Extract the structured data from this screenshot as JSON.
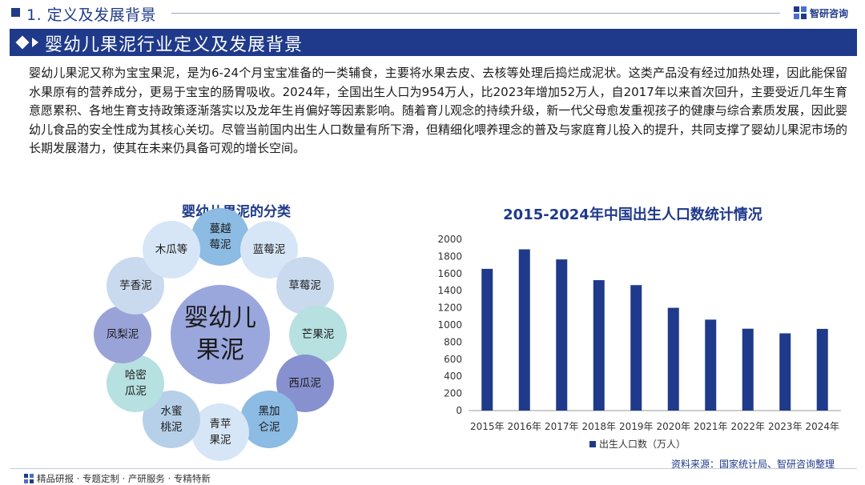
{
  "header": {
    "section": "1. 定义及发展背景",
    "logo_text": "智研咨询"
  },
  "banner": {
    "title": "婴幼儿果泥行业定义及发展背景"
  },
  "paragraph": "婴幼儿果泥又称为宝宝果泥，是为6-24个月宝宝准备的一类辅食，主要将水果去皮、去核等处理后捣烂成泥状。这类产品没有经过加热处理，因此能保留水果原有的营养成分，更易于宝宝的肠胃吸收。2024年，全国出生人口为954万人，比2023年增加52万人，自2017年以来首次回升，主要受近几年生育意愿累积、各地生育支持政策逐渐落实以及龙年生肖偏好等因素影响。随着育儿观念的持续升级，新一代父母愈发重视孩子的健康与综合素质发展，因此婴幼儿食品的安全性成为其核心关切。尽管当前国内出生人口数量有所下滑，但精细化喂养理念的普及与家庭育儿投入的提升，共同支撑了婴幼儿果泥市场的长期发展潜力，使其在未来仍具备可观的增长空间。",
  "classification": {
    "title": "婴幼儿果泥的分类",
    "center": "婴幼儿果泥",
    "items": [
      {
        "label": "蔓越莓泥",
        "color": "#8cbbe3"
      },
      {
        "label": "蓝莓泥",
        "color": "#d7e6f6"
      },
      {
        "label": "草莓泥",
        "color": "#c9d9ee"
      },
      {
        "label": "芒果泥",
        "color": "#b7e0e0"
      },
      {
        "label": "西瓜泥",
        "color": "#8791cf"
      },
      {
        "label": "黑加仑泥",
        "color": "#8cbbe3"
      },
      {
        "label": "青苹果泥",
        "color": "#d7e6f6"
      },
      {
        "label": "水蜜桃泥",
        "color": "#b7d0ea"
      },
      {
        "label": "哈密瓜泥",
        "color": "#b7e0e0"
      },
      {
        "label": "凤梨泥",
        "color": "#9aa3d8"
      },
      {
        "label": "芋香泥",
        "color": "#c9d9ee"
      },
      {
        "label": "木瓜等",
        "color": "#d7e6f6"
      }
    ]
  },
  "chart_data": {
    "type": "bar",
    "title": "2015-2024年中国出生人口数统计情况",
    "categories": [
      "2015年",
      "2016年",
      "2017年",
      "2018年",
      "2019年",
      "2020年",
      "2021年",
      "2022年",
      "2023年",
      "2024年"
    ],
    "series": [
      {
        "name": "出生人口数（万人）",
        "values": [
          1655,
          1883,
          1765,
          1523,
          1465,
          1200,
          1062,
          956,
          902,
          954
        ],
        "color": "#1f3a8a"
      }
    ],
    "ylim": [
      0,
      2000
    ],
    "yticks": [
      0,
      200,
      400,
      600,
      800,
      1000,
      1200,
      1400,
      1600,
      1800,
      2000
    ],
    "xlabel": "",
    "ylabel": "",
    "legend": "bottom"
  },
  "footer": {
    "left": "精品研报 · 专题定制 · 产研服务 · 专精特新",
    "source": "资料来源：国家统计局、智研咨询整理"
  }
}
